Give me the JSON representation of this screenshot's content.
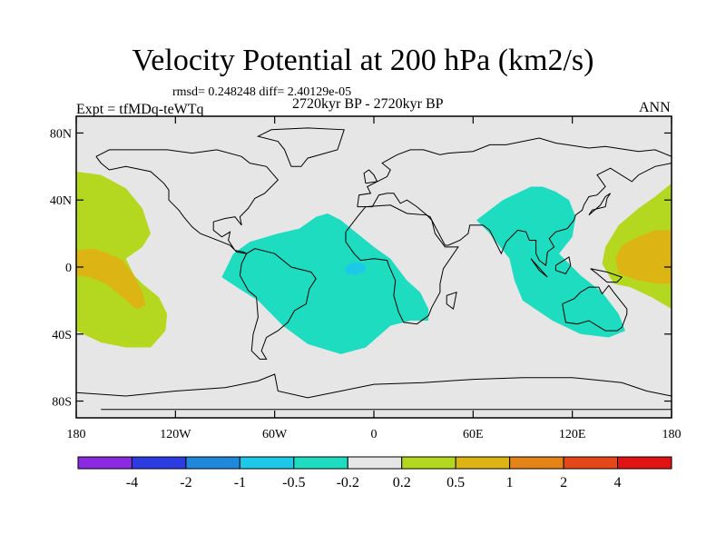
{
  "chart_data": {
    "type": "heatmap",
    "title": "Velocity Potential at 200 hPa (km2/s)",
    "stats": "rmsd= 0.248248  diff= 2.40129e-05",
    "period": "2720kyr BP - 2720kyr BP",
    "experiment": "Expt = tfMDq-teWTq",
    "season": "ANN",
    "x_range": [
      -180,
      180
    ],
    "y_range": [
      -90,
      90
    ],
    "x_ticks": [
      {
        "value": -180,
        "label": "180"
      },
      {
        "value": -120,
        "label": "120W"
      },
      {
        "value": -60,
        "label": "60W"
      },
      {
        "value": 0,
        "label": "0"
      },
      {
        "value": 60,
        "label": "60E"
      },
      {
        "value": 120,
        "label": "120E"
      },
      {
        "value": 180,
        "label": "180"
      }
    ],
    "y_ticks": [
      {
        "value": 80,
        "label": "80N"
      },
      {
        "value": 40,
        "label": "40N"
      },
      {
        "value": 0,
        "label": "0"
      },
      {
        "value": -40,
        "label": "40S"
      },
      {
        "value": -80,
        "label": "80S"
      }
    ],
    "colorbar": {
      "colors": [
        "#8a2be2",
        "#2d3ce0",
        "#1e88dc",
        "#1ec8e8",
        "#1edcc0",
        "#e6e6e6",
        "#b4d820",
        "#dcb414",
        "#e48418",
        "#e44818",
        "#e01414"
      ],
      "labels": [
        "-4",
        "-2",
        "-1",
        "-0.5",
        "-0.2",
        "0.2",
        "0.5",
        "1",
        "2",
        "4"
      ]
    },
    "regions": [
      {
        "name": "pacific-west-positive",
        "level": 0.5,
        "color": "#b4d820",
        "points": [
          [
            -180,
            57
          ],
          [
            -165,
            55
          ],
          [
            -150,
            47
          ],
          [
            -140,
            35
          ],
          [
            -135,
            20
          ],
          [
            -140,
            12
          ],
          [
            -150,
            5
          ],
          [
            -145,
            -5
          ],
          [
            -140,
            -10
          ],
          [
            -130,
            -18
          ],
          [
            -125,
            -28
          ],
          [
            -126,
            -38
          ],
          [
            -135,
            -48
          ],
          [
            -150,
            -48
          ],
          [
            -165,
            -45
          ],
          [
            -180,
            -38
          ]
        ]
      },
      {
        "name": "pacific-west-core",
        "level": 1,
        "color": "#dcb414",
        "points": [
          [
            -180,
            10
          ],
          [
            -170,
            11
          ],
          [
            -160,
            8
          ],
          [
            -152,
            4
          ],
          [
            -145,
            -5
          ],
          [
            -140,
            -15
          ],
          [
            -138,
            -23
          ],
          [
            -144,
            -25
          ],
          [
            -152,
            -18
          ],
          [
            -162,
            -10
          ],
          [
            -172,
            -6
          ],
          [
            -180,
            -5
          ]
        ]
      },
      {
        "name": "atlantic-africa-negative",
        "level": -0.5,
        "color": "#1edcc0",
        "points": [
          [
            -92,
            -6
          ],
          [
            -85,
            8
          ],
          [
            -75,
            15
          ],
          [
            -58,
            20
          ],
          [
            -45,
            23
          ],
          [
            -35,
            30
          ],
          [
            -28,
            32
          ],
          [
            -20,
            28
          ],
          [
            -10,
            20
          ],
          [
            0,
            12
          ],
          [
            10,
            5
          ],
          [
            20,
            -8
          ],
          [
            28,
            -15
          ],
          [
            33,
            -25
          ],
          [
            33,
            -32
          ],
          [
            22,
            -32
          ],
          [
            10,
            -35
          ],
          [
            -5,
            -48
          ],
          [
            -20,
            -52
          ],
          [
            -40,
            -46
          ],
          [
            -55,
            -35
          ],
          [
            -70,
            -20
          ],
          [
            -83,
            -12
          ]
        ]
      },
      {
        "name": "atlantic-core-negative",
        "level": -1,
        "color": "#1ec8e8",
        "points": [
          [
            -18,
            -2
          ],
          [
            -15,
            2
          ],
          [
            -9,
            3
          ],
          [
            -5,
            1
          ],
          [
            -6,
            -3
          ],
          [
            -12,
            -5
          ],
          [
            -16,
            -4
          ]
        ]
      },
      {
        "name": "indian-ocean-negative",
        "level": -0.5,
        "color": "#1edcc0",
        "points": [
          [
            62,
            28
          ],
          [
            78,
            40
          ],
          [
            95,
            48
          ],
          [
            102,
            48
          ],
          [
            110,
            45
          ],
          [
            118,
            40
          ],
          [
            122,
            30
          ],
          [
            120,
            18
          ],
          [
            112,
            8
          ],
          [
            125,
            -5
          ],
          [
            138,
            -15
          ],
          [
            148,
            -28
          ],
          [
            152,
            -38
          ],
          [
            142,
            -42
          ],
          [
            125,
            -40
          ],
          [
            108,
            -32
          ],
          [
            90,
            -20
          ],
          [
            85,
            -8
          ],
          [
            82,
            5
          ],
          [
            70,
            20
          ]
        ]
      },
      {
        "name": "pacific-east-positive",
        "level": 0.5,
        "color": "#b4d820",
        "points": [
          [
            180,
            50
          ],
          [
            170,
            42
          ],
          [
            160,
            35
          ],
          [
            148,
            25
          ],
          [
            140,
            12
          ],
          [
            138,
            2
          ],
          [
            145,
            -10
          ],
          [
            155,
            -12
          ],
          [
            168,
            -18
          ],
          [
            180,
            -25
          ]
        ]
      },
      {
        "name": "pacific-east-core",
        "level": 1,
        "color": "#dcb414",
        "points": [
          [
            180,
            22
          ],
          [
            170,
            22
          ],
          [
            160,
            18
          ],
          [
            150,
            13
          ],
          [
            146,
            5
          ],
          [
            148,
            -4
          ],
          [
            160,
            -8
          ],
          [
            172,
            -10
          ],
          [
            180,
            -10
          ]
        ]
      }
    ]
  }
}
